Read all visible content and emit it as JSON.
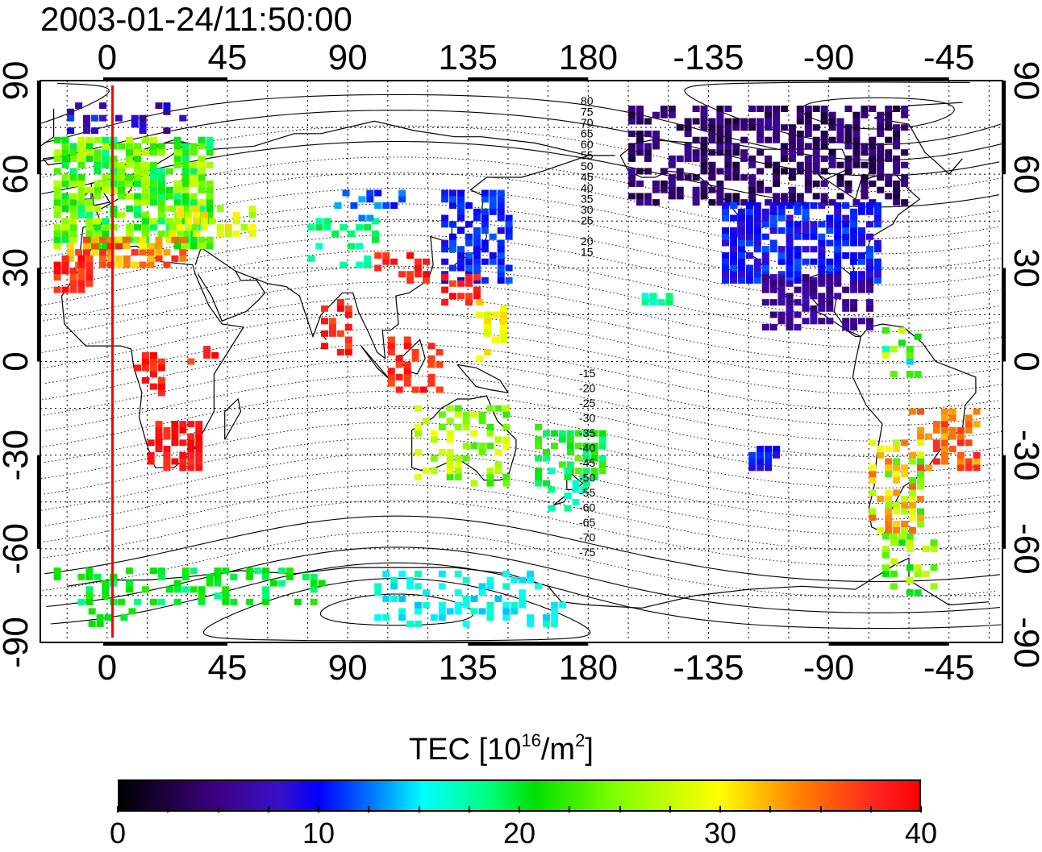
{
  "timestamp": "2003-01-24/11:50:00",
  "map": {
    "top_axis_labels": [
      "0",
      "45",
      "90",
      "135",
      "180",
      "-135",
      "-90",
      "-45"
    ],
    "bottom_axis_labels": [
      "0",
      "45",
      "90",
      "135",
      "180",
      "-135",
      "-90",
      "-45"
    ],
    "left_axis_labels": [
      "90",
      "60",
      "30",
      "0",
      "-30",
      "-60",
      "-90"
    ],
    "right_axis_labels": [
      "90",
      "60",
      "30",
      "0",
      "-30",
      "-60",
      "-90"
    ],
    "longitude_range": [
      -25,
      335
    ],
    "latitude_range": [
      -90,
      90
    ],
    "terminator_longitude": 2,
    "magnetic_contour_labels": [
      "80",
      "75",
      "70",
      "65",
      "60",
      "55",
      "50",
      "45",
      "40",
      "35",
      "30",
      "25",
      "20",
      "15",
      "-15",
      "-20",
      "-25",
      "-30",
      "-35",
      "-40",
      "-45",
      "-50",
      "-55",
      "-60",
      "-65",
      "-70",
      "-75"
    ],
    "colors": {
      "terminator": "#ff0000",
      "frame": "#000000"
    }
  },
  "colorbar": {
    "title_main": "TEC  [10",
    "title_exp1": "16",
    "title_mid": "/m",
    "title_exp2": "2",
    "title_end": "]",
    "min": 0,
    "max": 40,
    "tick_labels": [
      "0",
      "10",
      "20",
      "30",
      "40"
    ],
    "colormap": "jet-like (black → purple → blue → cyan → green → yellow → red)"
  }
}
